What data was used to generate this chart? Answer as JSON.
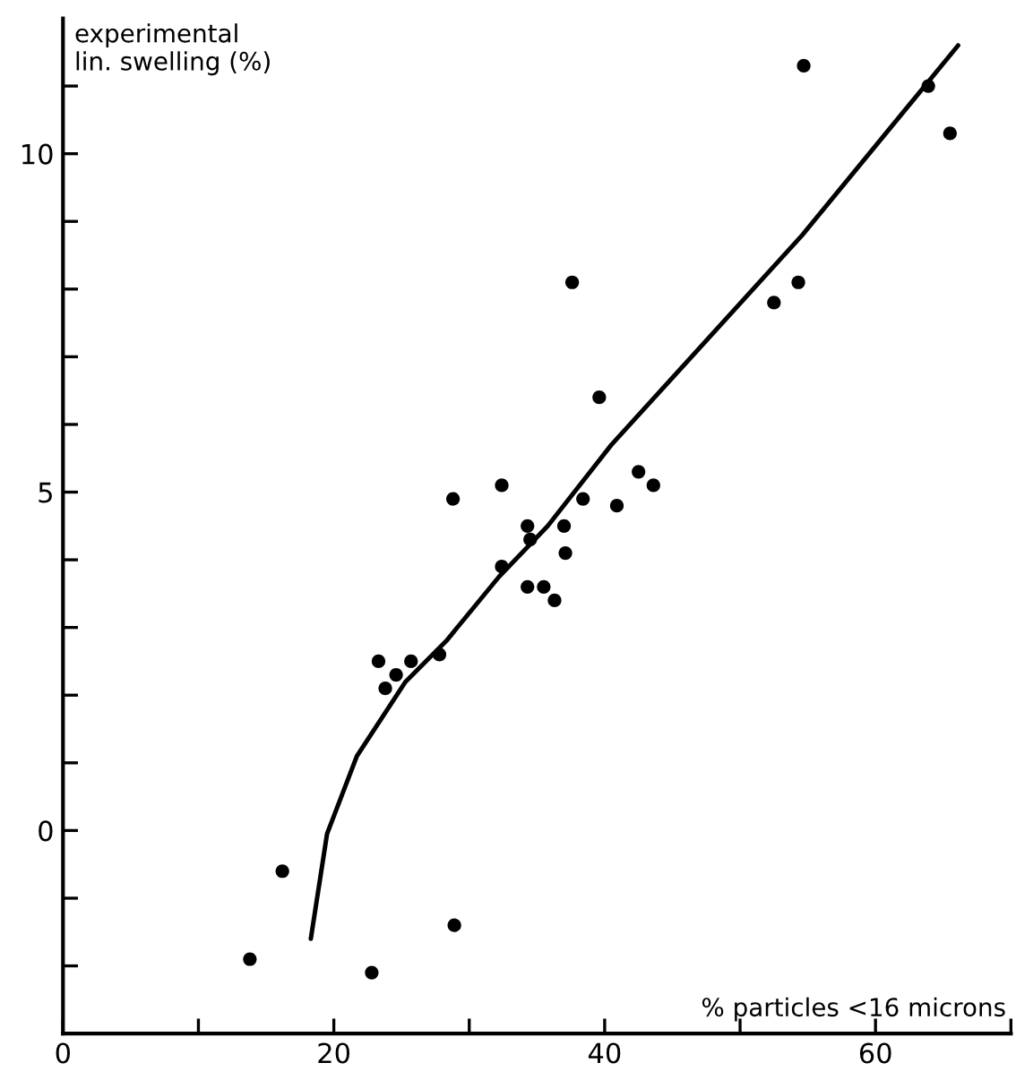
{
  "chart_data": {
    "type": "scatter",
    "xlabel": "% particles <16 microns",
    "ylabel": "experimental\nlin. swelling (%)",
    "xlim": [
      0,
      70
    ],
    "ylim": [
      -3,
      12
    ],
    "xticks": [
      0,
      {
        "value": 10,
        "label": null
      },
      20,
      {
        "value": 30,
        "label": null
      },
      40,
      {
        "value": 50,
        "label": null
      },
      60,
      {
        "value": 70,
        "label": null
      }
    ],
    "yticks": [
      {
        "value": -2,
        "label": null
      },
      {
        "value": -1,
        "label": null
      },
      0,
      {
        "value": 1,
        "label": null
      },
      {
        "value": 2,
        "label": null
      },
      {
        "value": 3,
        "label": null
      },
      {
        "value": 4,
        "label": null
      },
      5,
      {
        "value": 6,
        "label": null
      },
      {
        "value": 7,
        "label": null
      },
      {
        "value": 8,
        "label": null
      },
      {
        "value": 9,
        "label": null
      },
      10,
      {
        "value": 11,
        "label": null
      }
    ],
    "grid": false,
    "marker": "circle",
    "series": [
      {
        "color": "#000000",
        "x": [
          13.8,
          16.2,
          22.8,
          28.9,
          23.3,
          23.8,
          24.6,
          25.7,
          27.8,
          28.8,
          32.4,
          32.4,
          34.3,
          35.5,
          36.3,
          34.3,
          34.5,
          37.0,
          37.1,
          38.4,
          40.9,
          42.5,
          43.6,
          37.6,
          39.6,
          52.5,
          54.3,
          54.7,
          63.9,
          65.5
        ],
        "values": [
          -1.9,
          -0.6,
          -2.1,
          -1.4,
          2.5,
          2.1,
          2.3,
          2.5,
          2.6,
          4.9,
          5.1,
          3.9,
          3.6,
          3.6,
          3.4,
          4.5,
          4.3,
          4.5,
          4.1,
          4.9,
          4.8,
          5.3,
          5.1,
          8.1,
          6.4,
          7.8,
          8.1,
          11.3,
          11.0,
          10.3
        ]
      },
      {
        "type": "line",
        "color": "#000000",
        "marker": "none",
        "line_style": "solid",
        "x": [
          18.3,
          19.5,
          21.7,
          25.3,
          28.3,
          32.2,
          35.8,
          40.5,
          54.6,
          66.1
        ],
        "values": [
          -1.6,
          -0.05,
          1.1,
          2.2,
          2.8,
          3.75,
          4.5,
          5.7,
          8.8,
          11.6
        ]
      }
    ]
  }
}
